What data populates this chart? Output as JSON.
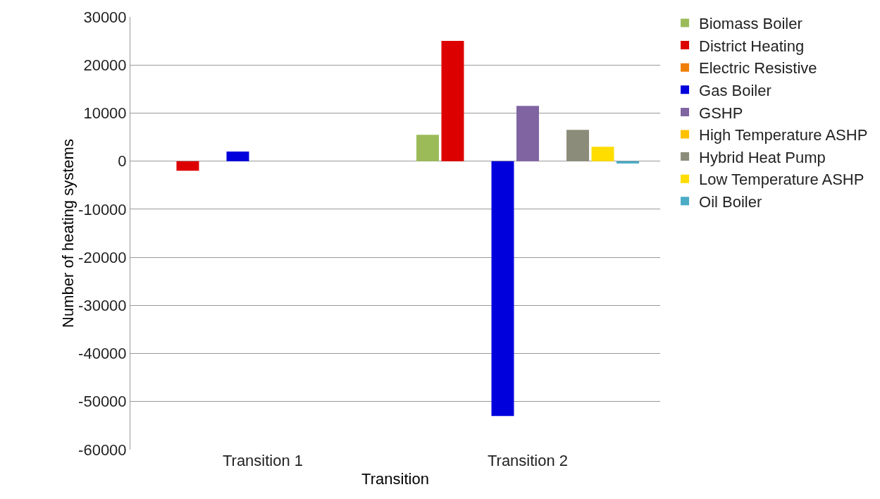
{
  "chart_data": {
    "type": "bar",
    "xlabel": "Transition",
    "ylabel": "Number of heating systems",
    "categories": [
      "Transition 1",
      "Transition 2"
    ],
    "series": [
      {
        "name": "Biomass Boiler",
        "color": "#9bbb59",
        "values": [
          0,
          5500
        ]
      },
      {
        "name": "District Heating",
        "color": "#dd0000",
        "values": [
          -2000,
          25000
        ]
      },
      {
        "name": "Electric Resistive",
        "color": "#f07f09",
        "values": [
          0,
          0
        ]
      },
      {
        "name": "Gas Boiler",
        "color": "#0000dd",
        "values": [
          2000,
          -53000
        ]
      },
      {
        "name": "GSHP",
        "color": "#8064a2",
        "values": [
          0,
          11500
        ]
      },
      {
        "name": "High Temperature ASHP",
        "color": "#ffc000",
        "values": [
          0,
          0
        ]
      },
      {
        "name": "Hybrid Heat Pump",
        "color": "#8c8c7a",
        "values": [
          0,
          6500
        ]
      },
      {
        "name": "Low Temperature ASHP",
        "color": "#ffdd00",
        "values": [
          0,
          3000
        ]
      },
      {
        "name": "Oil Boiler",
        "color": "#4bacc6",
        "values": [
          0,
          -500
        ]
      }
    ],
    "ylim": [
      -60000,
      30000
    ],
    "yticks": [
      -60000,
      -50000,
      -40000,
      -30000,
      -20000,
      -10000,
      0,
      10000,
      20000,
      30000
    ],
    "grid": "y",
    "legend": "right"
  }
}
